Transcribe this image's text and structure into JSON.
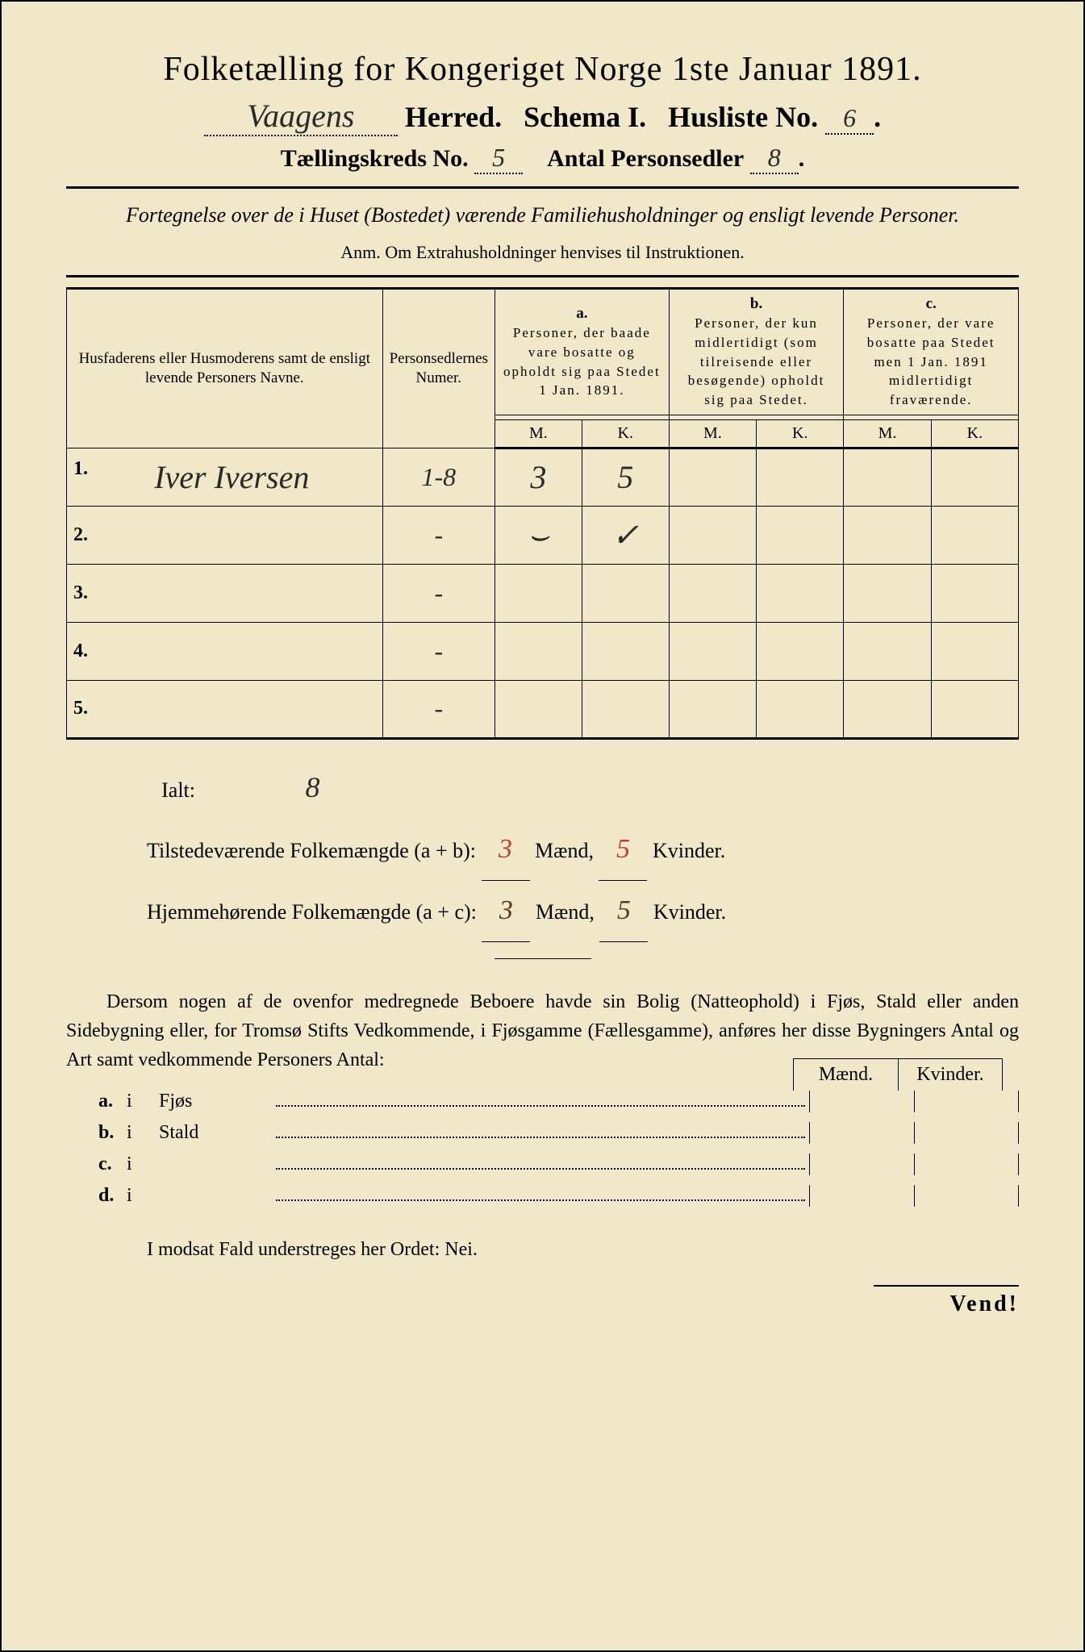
{
  "header": {
    "title": "Folketælling for Kongeriget Norge 1ste Januar 1891.",
    "herred_name": "Vaagens",
    "herred_label": "Herred.",
    "schema_label": "Schema I.",
    "husliste_label": "Husliste No.",
    "husliste_no": "6",
    "taellingskreds_label": "Tællingskreds No.",
    "taellingskreds_no": "5",
    "antal_label": "Antal Personsedler",
    "antal_value": "8"
  },
  "subtitle": "Fortegnelse over de i Huset (Bostedet) værende Familiehusholdninger og ensligt levende Personer.",
  "anm": "Anm. Om Extrahusholdninger henvises til Instruktionen.",
  "table": {
    "col1_header": "Husfaderens eller Husmoderens samt de ensligt levende Personers Navne.",
    "col2_header": "Personsedlernes Numer.",
    "col_a_label": "a.",
    "col_a_text": "Personer, der baade vare bosatte og opholdt sig paa Stedet 1 Jan. 1891.",
    "col_b_label": "b.",
    "col_b_text": "Personer, der kun midlertidigt (som tilreisende eller besøgende) opholdt sig paa Stedet.",
    "col_c_label": "c.",
    "col_c_text": "Personer, der vare bosatte paa Stedet men 1 Jan. 1891 midlertidigt fraværende.",
    "m_label": "M.",
    "k_label": "K.",
    "rows": [
      {
        "n": "1.",
        "name": "Iver Iversen",
        "num": "1-8",
        "am": "3",
        "ak": "5",
        "bm": "",
        "bk": "",
        "cm": "",
        "ck": ""
      },
      {
        "n": "2.",
        "name": "",
        "num": "-",
        "am": "⌣",
        "ak": "✓",
        "bm": "",
        "bk": "",
        "cm": "",
        "ck": ""
      },
      {
        "n": "3.",
        "name": "",
        "num": "-",
        "am": "",
        "ak": "",
        "bm": "",
        "bk": "",
        "cm": "",
        "ck": ""
      },
      {
        "n": "4.",
        "name": "",
        "num": "-",
        "am": "",
        "ak": "",
        "bm": "",
        "bk": "",
        "cm": "",
        "ck": ""
      },
      {
        "n": "5.",
        "name": "",
        "num": "-",
        "am": "",
        "ak": "",
        "bm": "",
        "bk": "",
        "cm": "",
        "ck": ""
      }
    ]
  },
  "summary": {
    "ialt_label": "Ialt:",
    "ialt_value": "8",
    "tilstedevaerende_label": "Tilstedeværende Folkemængde (a + b):",
    "tilst_maend": "3",
    "tilst_kvinder": "5",
    "hjemmehoerende_label": "Hjemmehørende Folkemængde (a + c):",
    "hjem_maend": "3",
    "hjem_kvinder": "5",
    "maend_label": "Mænd,",
    "kvinder_label": "Kvinder."
  },
  "paragraph": "Dersom nogen af de ovenfor medregnede Beboere havde sin Bolig (Natteophold) i Fjøs, Stald eller anden Sidebygning eller, for Tromsø Stifts Vedkommende, i Fjøsgamme (Fællesgamme), anføres her disse Bygningers Antal og Art samt vedkommende Personers Antal:",
  "outbuildings": {
    "maend_label": "Mænd.",
    "kvinder_label": "Kvinder.",
    "rows": [
      {
        "letter": "a.",
        "i": "i",
        "name": "Fjøs"
      },
      {
        "letter": "b.",
        "i": "i",
        "name": "Stald"
      },
      {
        "letter": "c.",
        "i": "i",
        "name": ""
      },
      {
        "letter": "d.",
        "i": "i",
        "name": ""
      }
    ]
  },
  "nei_line": "I modsat Fald understreges her Ordet: Nei.",
  "vend": "Vend!",
  "colors": {
    "paper": "#f0e8c8",
    "ink": "#1a1a1a",
    "red_ink": "#c04030",
    "brown_ink": "#5a3a1a"
  }
}
